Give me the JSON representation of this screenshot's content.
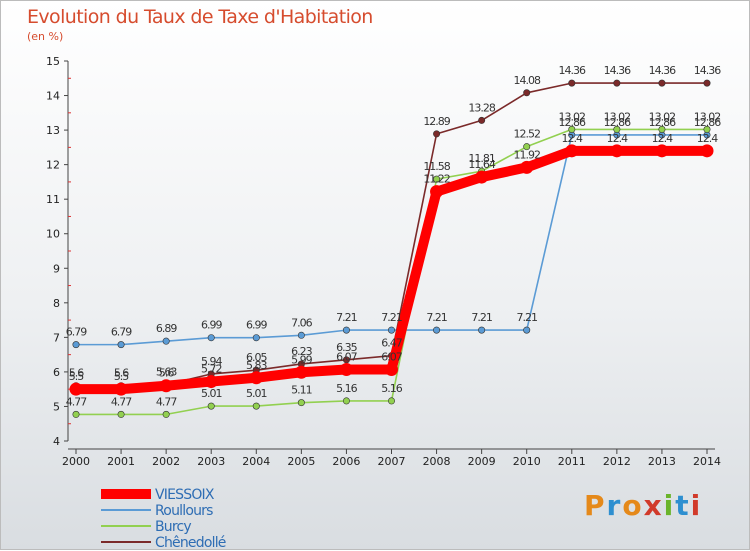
{
  "header": {
    "title": "Evolution du Taux de Taxe d'Habitation",
    "unit": "(en %)"
  },
  "logo": {
    "text": "Proxiti",
    "colors": [
      "#e5891a",
      "#2e8fd0",
      "#e5891a",
      "#d13a2a",
      "#6ab42a",
      "#2e8fd0",
      "#d13a2a"
    ]
  },
  "chart_data": {
    "type": "line",
    "x": [
      "2000",
      "2001",
      "2002",
      "2003",
      "2004",
      "2005",
      "2006",
      "2007",
      "2008",
      "2009",
      "2010",
      "2011",
      "2012",
      "2013",
      "2014"
    ],
    "ylim": [
      4,
      15
    ],
    "yticks": [
      4,
      5,
      6,
      7,
      8,
      9,
      10,
      11,
      12,
      13,
      14,
      15
    ],
    "grid": false,
    "legend_position": "bottom-left",
    "series": [
      {
        "name": "VIESSOIX",
        "color": "#ff0000",
        "values": [
          5.5,
          5.5,
          5.6,
          5.72,
          5.83,
          5.99,
          6.07,
          6.07,
          11.22,
          11.64,
          11.92,
          12.4,
          12.4,
          12.4,
          12.4
        ],
        "labels": [
          "5.5",
          "5.5",
          "5.6",
          "5.72",
          "5.83",
          "5.99",
          "6.07",
          "6.07",
          "11.22",
          "11.64",
          "11.92",
          "12.4",
          "12.4",
          "12.4",
          "12.4"
        ]
      },
      {
        "name": "Roullours",
        "color": "#5b9bd5",
        "values": [
          6.79,
          6.79,
          6.89,
          6.99,
          6.99,
          7.06,
          7.21,
          7.21,
          7.21,
          7.21,
          7.21,
          12.86,
          12.86,
          12.86,
          12.86
        ],
        "labels": [
          "6.79",
          "6.79",
          "6.89",
          "6.99",
          "6.99",
          "7.06",
          "7.21",
          "7.21",
          "7.21",
          "7.21",
          "7.21",
          "12.86",
          "12.86",
          "12.86",
          "12.86"
        ]
      },
      {
        "name": "Burcy",
        "color": "#92d050",
        "values": [
          4.77,
          4.77,
          4.77,
          5.01,
          5.01,
          5.11,
          5.16,
          5.16,
          11.58,
          11.81,
          12.52,
          13.02,
          13.02,
          13.02,
          13.02
        ],
        "labels": [
          "4.77",
          "4.77",
          "4.77",
          "5.01",
          "5.01",
          "5.11",
          "5.16",
          "5.16",
          "11.58",
          "11.81",
          "12.52",
          "13.02",
          "13.02",
          "13.02",
          "13.02"
        ]
      },
      {
        "name": "Chênedollé",
        "color": "#7b2a2a",
        "values": [
          5.6,
          5.6,
          5.63,
          5.94,
          6.05,
          6.23,
          6.35,
          6.47,
          12.89,
          13.28,
          14.08,
          14.36,
          14.36,
          14.36,
          14.36
        ],
        "labels": [
          "5.6",
          "5.6",
          "5.63",
          "5.94",
          "6.05",
          "6.23",
          "6.35",
          "6.47",
          "12.89",
          "13.28",
          "14.08",
          "14.36",
          "14.36",
          "14.36",
          "14.36"
        ]
      }
    ]
  }
}
